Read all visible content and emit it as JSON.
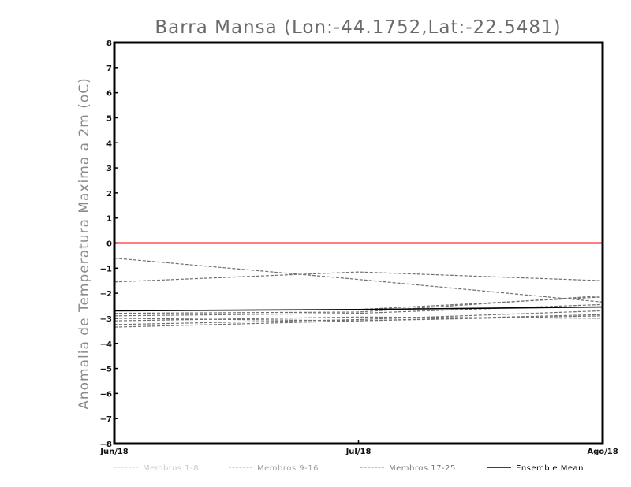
{
  "chart_data": {
    "type": "line",
    "title": "Barra Mansa (Lon:-44.1752,Lat:-22.5481)",
    "xlabel": "",
    "ylabel": "Anomalia de Temperatura Maxima a 2m (oC)",
    "categories": [
      "Jun/18",
      "Jul/18",
      "Ago/18"
    ],
    "ylim": [
      -8,
      8
    ],
    "yticks": [
      8,
      7,
      6,
      5,
      4,
      3,
      2,
      1,
      0,
      -1,
      -2,
      -3,
      -4,
      -5,
      -6,
      -7,
      -8
    ],
    "ytick_labels": [
      "8",
      "7",
      "6",
      "5",
      "4",
      "3",
      "2",
      "1",
      "0",
      "−1",
      "−2",
      "−3",
      "−4",
      "−5",
      "−6",
      "−7",
      "−8"
    ],
    "grid": false,
    "reference_line": {
      "y": 0,
      "color": "#ff0000"
    },
    "legend_position": "bottom",
    "legend": [
      {
        "label": "Membros 1-8",
        "color": "#c8c8c8",
        "style": "dashed"
      },
      {
        "label": "Membros 9-16",
        "color": "#a0a0a0",
        "style": "dashed"
      },
      {
        "label": "Membros 17-25",
        "color": "#787878",
        "style": "dashed"
      },
      {
        "label": "Ensemble Mean",
        "color": "#000000",
        "style": "solid"
      }
    ],
    "series": [
      {
        "group": "Membros 17-25",
        "color": "#707070",
        "style": "dashed",
        "values": [
          -0.6,
          -1.45,
          -2.35
        ]
      },
      {
        "group": "Membros 17-25",
        "color": "#707070",
        "style": "dashed",
        "values": [
          -1.55,
          -1.15,
          -1.5
        ]
      },
      {
        "group": "Membros 17-25",
        "color": "#707070",
        "style": "dashed",
        "values": [
          -2.7,
          -2.65,
          -2.15
        ]
      },
      {
        "group": "Membros 17-25",
        "color": "#707070",
        "style": "dashed",
        "values": [
          -2.8,
          -2.75,
          -2.1
        ]
      },
      {
        "group": "Membros 17-25",
        "color": "#707070",
        "style": "dashed",
        "values": [
          -2.9,
          -2.8,
          -2.45
        ]
      },
      {
        "group": "Membros 17-25",
        "color": "#707070",
        "style": "dashed",
        "values": [
          -3.0,
          -3.1,
          -2.85
        ]
      },
      {
        "group": "Membros 17-25",
        "color": "#707070",
        "style": "dashed",
        "values": [
          -3.1,
          -2.95,
          -3.0
        ]
      },
      {
        "group": "Membros 17-25",
        "color": "#707070",
        "style": "dashed",
        "values": [
          -3.25,
          -3.05,
          -2.7
        ]
      },
      {
        "group": "Membros 17-25",
        "color": "#707070",
        "style": "dashed",
        "values": [
          -3.35,
          -3.1,
          -2.9
        ]
      },
      {
        "name": "Ensemble Mean",
        "color": "#000000",
        "style": "solid",
        "values": [
          -2.7,
          -2.65,
          -2.55
        ]
      }
    ]
  }
}
